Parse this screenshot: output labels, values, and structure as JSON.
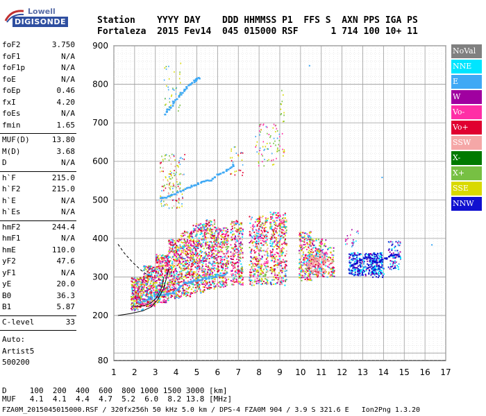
{
  "logo": {
    "top": "Lowell",
    "bottom": "DIGISONDE"
  },
  "header": {
    "labels": "Station    YYYY DAY    DDD HHMMSS P1  FFS S  AXN PPS IGA PS",
    "values": "Fortaleza  2015 Fev14  045 015000 RSF      1 714 100 10+ 11"
  },
  "params": {
    "group1": [
      {
        "k": "foF2",
        "v": "3.750"
      },
      {
        "k": "foF1",
        "v": "N/A"
      },
      {
        "k": "foF1p",
        "v": "N/A"
      },
      {
        "k": "foE",
        "v": "N/A"
      },
      {
        "k": "foEp",
        "v": "0.46"
      },
      {
        "k": "fxI",
        "v": "4.20"
      },
      {
        "k": "foEs",
        "v": "N/A"
      },
      {
        "k": "fmin",
        "v": "1.65"
      }
    ],
    "group2": [
      {
        "k": "MUF(D)",
        "v": "13.80"
      },
      {
        "k": "M(D)",
        "v": "3.68"
      },
      {
        "k": "D",
        "v": "N/A"
      }
    ],
    "group3": [
      {
        "k": "h`F",
        "v": "215.0"
      },
      {
        "k": "h`F2",
        "v": "215.0"
      },
      {
        "k": "h`E",
        "v": "N/A"
      },
      {
        "k": "h`Es",
        "v": "N/A"
      }
    ],
    "group4": [
      {
        "k": "hmF2",
        "v": "244.4"
      },
      {
        "k": "hmF1",
        "v": "N/A"
      },
      {
        "k": "hmE",
        "v": "110.0"
      },
      {
        "k": "yF2",
        "v": "47.6"
      },
      {
        "k": "yF1",
        "v": "N/A"
      },
      {
        "k": "yE",
        "v": "20.0"
      },
      {
        "k": "B0",
        "v": "36.3"
      },
      {
        "k": "B1",
        "v": "5.87"
      }
    ],
    "group5": [
      {
        "k": "C-level",
        "v": "33"
      }
    ],
    "auto": [
      "Auto:",
      "Artist5",
      "500200"
    ]
  },
  "legend": [
    {
      "label": "NoVal",
      "bg": "#808080",
      "fg": "#ffffff"
    },
    {
      "label": "NNE",
      "bg": "#00e5ff",
      "fg": "#ffffff"
    },
    {
      "label": "E",
      "bg": "#3fa9f5",
      "fg": "#ffffff"
    },
    {
      "label": "W",
      "bg": "#a000a0",
      "fg": "#ffffff"
    },
    {
      "label": "Vo-",
      "bg": "#ff2ea6",
      "fg": "#ffffff"
    },
    {
      "label": "Vo+",
      "bg": "#e00030",
      "fg": "#ffffff"
    },
    {
      "label": "SSW",
      "bg": "#f5a7a7",
      "fg": "#ffffff"
    },
    {
      "label": "X-",
      "bg": "#007a00",
      "fg": "#ffffff"
    },
    {
      "label": "X+",
      "bg": "#77c043",
      "fg": "#ffffff"
    },
    {
      "label": "SSE",
      "bg": "#d9d900",
      "fg": "#ffffff"
    },
    {
      "label": "NNW",
      "bg": "#1010d0",
      "fg": "#ffffff"
    }
  ],
  "dmuf": {
    "d_row": "D     100  200  400  600  800 1000 1500 3000 [km]",
    "muf_row": "MUF   4.1  4.1  4.4  4.7  5.2  6.0  8.2 13.8 [MHz]"
  },
  "footer": "FZA0M_2015045015000.RSF / 320fx256h 50 kHz 5.0 km / DPS-4 FZA0M 904 / 3.9 S 321.6 E   Ion2Png 1.3.20",
  "chart_data": {
    "type": "scatter",
    "title": "",
    "xlabel": "",
    "ylabel": "",
    "xlim": [
      1,
      17
    ],
    "ylim": [
      80,
      900
    ],
    "x_ticks": [
      "1",
      "2",
      "3",
      "4",
      "5",
      "6",
      "7",
      "8",
      "9",
      "10",
      "11",
      "12",
      "13",
      "14",
      "15",
      "16",
      "17"
    ],
    "y_ticks": [
      "80",
      "200",
      "300",
      "400",
      "500",
      "600",
      "700",
      "800",
      "900"
    ],
    "grid": true,
    "legend_position": "right",
    "series": [
      {
        "name": "E",
        "x": [
          2.1,
          2.6,
          3.0,
          3.5,
          3.9,
          4.3,
          4.7,
          5.1,
          5.5,
          6.0,
          6.5
        ],
        "y": [
          235,
          245,
          255,
          258,
          262,
          285,
          290,
          295,
          300,
          305,
          312
        ]
      },
      {
        "name": "E",
        "x": [
          3.2,
          3.6,
          4.0,
          4.4,
          4.8,
          5.2,
          5.6,
          6.0,
          6.4,
          6.8
        ],
        "y": [
          505,
          512,
          520,
          530,
          540,
          548,
          555,
          568,
          580,
          595
        ]
      },
      {
        "name": "E",
        "x": [
          3.4,
          3.7,
          4.0,
          4.3,
          4.6,
          4.9,
          5.1
        ],
        "y": [
          725,
          745,
          765,
          785,
          800,
          812,
          822
        ]
      },
      {
        "name": "NNW",
        "x": [
          12.4,
          12.8,
          13.2,
          13.6,
          14.0,
          14.4,
          14.8
        ],
        "y": [
          330,
          345,
          355,
          340,
          350,
          360,
          355
        ]
      },
      {
        "name": "SSW",
        "x": [
          10.3,
          10.7,
          11.1,
          11.5
        ],
        "y": [
          330,
          345,
          350,
          340
        ]
      }
    ],
    "profile_curve": {
      "x": [
        1.2,
        1.8,
        2.4,
        2.8,
        3.1,
        3.4,
        3.65
      ],
      "y": [
        200,
        205,
        212,
        222,
        240,
        270,
        320
      ]
    },
    "dashed_curve": {
      "x": [
        1.2,
        1.5,
        1.9,
        2.3,
        2.7
      ],
      "y": [
        385,
        362,
        338,
        318,
        302
      ]
    }
  }
}
